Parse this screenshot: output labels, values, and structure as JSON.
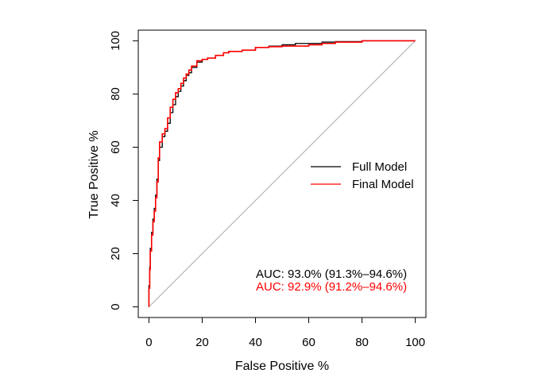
{
  "chart_data": {
    "type": "line",
    "title": "",
    "xlabel": "False Positive %",
    "ylabel": "True Positive %",
    "xlim": [
      -4,
      104
    ],
    "ylim": [
      -4,
      104
    ],
    "x_ticks": [
      0,
      20,
      40,
      60,
      80,
      100
    ],
    "y_ticks": [
      0,
      20,
      40,
      60,
      80,
      100
    ],
    "grid": false,
    "legend": {
      "position": "right",
      "entries": [
        {
          "label": "Full Model",
          "color": "#000000"
        },
        {
          "label": "Final Model",
          "color": "#ff0000"
        }
      ]
    },
    "reference_line": {
      "from": [
        0,
        0
      ],
      "to": [
        100,
        100
      ],
      "color": "#aaaaaa"
    },
    "series": [
      {
        "name": "Full Model",
        "color": "#000000",
        "x": [
          0,
          0,
          0.3,
          0.5,
          1,
          1.5,
          2,
          2.5,
          3,
          3.5,
          4,
          5,
          6,
          7,
          8,
          9,
          10,
          11,
          12,
          13,
          14,
          15,
          16,
          18,
          20,
          22,
          25,
          28,
          30,
          35,
          40,
          45,
          50,
          55,
          60,
          65,
          70,
          80,
          90,
          100
        ],
        "y": [
          0,
          8,
          15,
          22,
          28,
          33,
          37,
          42,
          48,
          55,
          60,
          64,
          66,
          69,
          73,
          76,
          79,
          81,
          83,
          85,
          87,
          88,
          90,
          92,
          93,
          93.5,
          94.5,
          95.5,
          96,
          96.5,
          97.5,
          98,
          98.5,
          99,
          99,
          99.5,
          99.7,
          100,
          100,
          100
        ]
      },
      {
        "name": "Final Model",
        "color": "#ff0000",
        "x": [
          0,
          0,
          0.3,
          0.5,
          1,
          1.5,
          2,
          2.5,
          3,
          3.5,
          4,
          5,
          6,
          7,
          8,
          9,
          10,
          11,
          12,
          13,
          14,
          15,
          16,
          18,
          20,
          22,
          25,
          28,
          30,
          35,
          40,
          45,
          50,
          55,
          60,
          65,
          70,
          80,
          90,
          100
        ],
        "y": [
          0,
          7,
          14,
          21,
          27,
          32,
          36,
          41,
          47,
          56,
          62,
          65,
          67,
          71,
          75,
          78,
          80.5,
          82,
          84,
          86,
          87.5,
          89,
          90.5,
          92.5,
          93,
          93.5,
          94.5,
          95.5,
          96,
          96.5,
          97.5,
          97.8,
          98,
          98,
          98.5,
          99,
          99.5,
          100,
          100,
          100
        ]
      }
    ],
    "annotations": [
      {
        "text": "AUC: 93.0% (91.3%–94.6%)",
        "color": "#000000"
      },
      {
        "text": "AUC: 92.9% (91.2%–94.6%)",
        "color": "#ff0000"
      }
    ]
  }
}
